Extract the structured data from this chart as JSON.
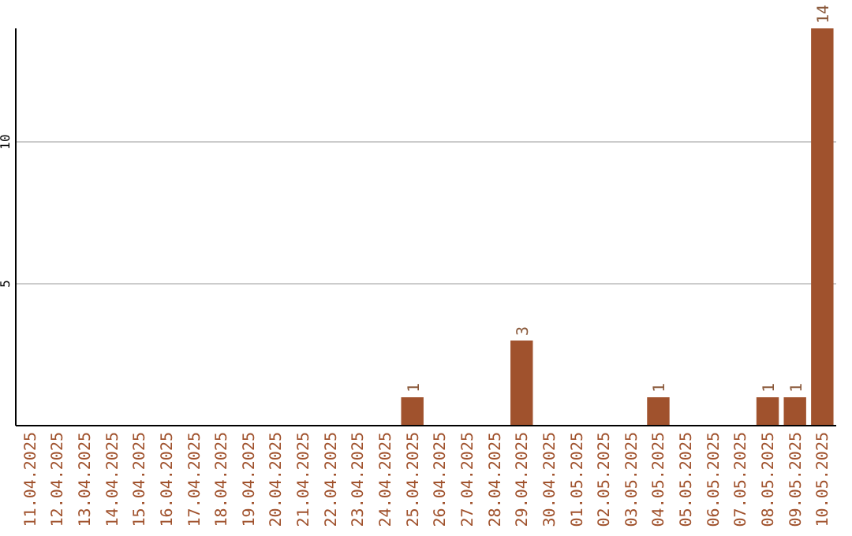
{
  "chart_data": {
    "type": "bar",
    "categories": [
      "11.04.2025",
      "12.04.2025",
      "13.04.2025",
      "14.04.2025",
      "15.04.2025",
      "16.04.2025",
      "17.04.2025",
      "18.04.2025",
      "19.04.2025",
      "20.04.2025",
      "21.04.2025",
      "22.04.2025",
      "23.04.2025",
      "24.04.2025",
      "25.04.2025",
      "26.04.2025",
      "27.04.2025",
      "28.04.2025",
      "29.04.2025",
      "30.04.2025",
      "01.05.2025",
      "02.05.2025",
      "03.05.2025",
      "04.05.2025",
      "05.05.2025",
      "06.05.2025",
      "07.05.2025",
      "08.05.2025",
      "09.05.2025",
      "10.05.2025"
    ],
    "values": [
      0,
      0,
      0,
      0,
      0,
      0,
      0,
      0,
      0,
      0,
      0,
      0,
      0,
      0,
      1,
      0,
      0,
      0,
      3,
      0,
      0,
      0,
      0,
      1,
      0,
      0,
      0,
      1,
      1,
      14
    ],
    "value_labels": [
      null,
      null,
      null,
      null,
      null,
      null,
      null,
      null,
      null,
      null,
      null,
      null,
      null,
      null,
      "1",
      null,
      null,
      null,
      "3",
      null,
      null,
      null,
      null,
      "1",
      null,
      null,
      null,
      "1",
      "1",
      "14"
    ],
    "color": "#a0522d",
    "ylim": [
      0,
      14
    ],
    "yticks": [
      5,
      10
    ],
    "grid": "y"
  }
}
